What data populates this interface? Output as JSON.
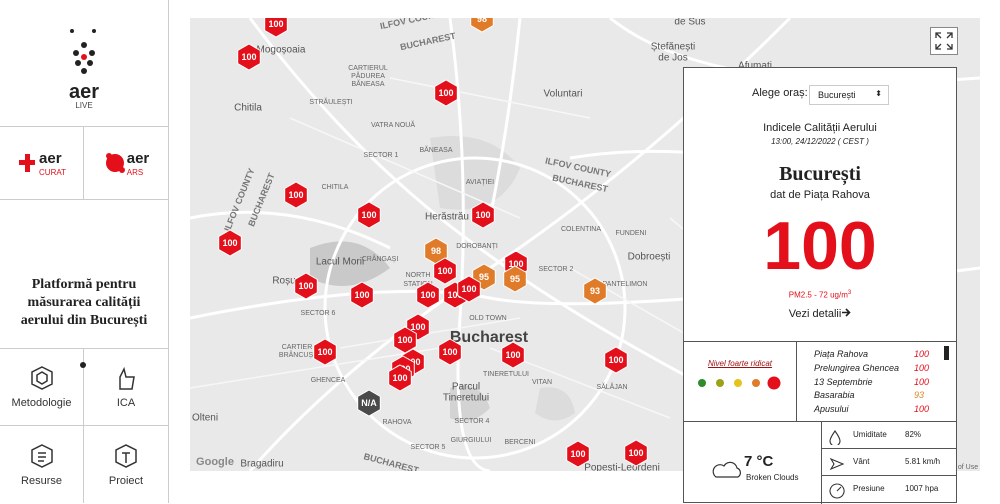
{
  "sidebar": {
    "logo": {
      "name": "aer",
      "sub": "LIVE"
    },
    "partners": [
      {
        "name": "aer",
        "sub": "CURAT"
      },
      {
        "name": "aer",
        "sub": "ARS"
      }
    ],
    "tagline": "Platformă pentru măsurarea calității aerului din București",
    "nav": [
      "Metodologie",
      "ICA",
      "Resurse",
      "Proiect"
    ]
  },
  "map": {
    "labels": [
      "Mogoșoaia",
      "ILFOV COUNTY",
      "BUCHAREST",
      "de Sus",
      "Ștefănești",
      "de Jos",
      "Afumați",
      "CARTIERUL",
      "PĂDUREA",
      "BĂNEASA",
      "STRĂULEȘTI",
      "Voluntari",
      "Chitila",
      "VATRA NOUĂ",
      "SECTOR 1",
      "BĂNEASA",
      "ILFOV COUNTY",
      "BUCHAREST",
      "CHITILA",
      "AVIAȚIEI",
      "ILFOV COUNTY",
      "BUCHAREST",
      "Herăstrău",
      "COLENTINA",
      "FUNDENI",
      "DOROBANȚI",
      "Lacul Morii",
      "CRÂNGAȘI",
      "Dobroești",
      "SECTOR 2",
      "Roșu",
      "PANTELIMON",
      "NORTH",
      "STATION",
      "SECTOR 6",
      "OLD TOWN",
      "Bucharest",
      "CARTIER",
      "BRÂNCUȘI",
      "GHENCEA",
      "TINERETULUI",
      "VITAN",
      "Parcul",
      "Tineretului",
      "SĂLĂJAN",
      "Olteni",
      "RAHOVA",
      "SECTOR 4",
      "GIURGIULUI",
      "SECTOR 5",
      "BERCENI",
      "Bragadiru",
      "BUCHAREST",
      "Popești-Leordeni",
      "Google",
      "of Use"
    ],
    "markers": [
      {
        "label": "100",
        "color": "#e3101b"
      },
      {
        "label": "100",
        "color": "#e3101b"
      },
      {
        "label": "100",
        "color": "#e3101b"
      },
      {
        "label": "98",
        "color": "#e07b2a"
      },
      {
        "label": "100",
        "color": "#e3101b"
      },
      {
        "label": "100",
        "color": "#e3101b"
      },
      {
        "label": "100",
        "color": "#e3101b"
      },
      {
        "label": "100",
        "color": "#e3101b"
      },
      {
        "label": "98",
        "color": "#e07b2a"
      },
      {
        "label": "100",
        "color": "#e3101b"
      },
      {
        "label": "100",
        "color": "#e3101b"
      },
      {
        "label": "95",
        "color": "#e07b2a"
      },
      {
        "label": "95",
        "color": "#e07b2a"
      },
      {
        "label": "100",
        "color": "#e3101b"
      },
      {
        "label": "100",
        "color": "#e3101b"
      },
      {
        "label": "100",
        "color": "#e3101b"
      },
      {
        "label": "100",
        "color": "#e3101b"
      },
      {
        "label": "100",
        "color": "#e3101b"
      },
      {
        "label": "93",
        "color": "#e07b2a"
      },
      {
        "label": "100",
        "color": "#e3101b"
      },
      {
        "label": "100",
        "color": "#e3101b"
      },
      {
        "label": "100",
        "color": "#e3101b"
      },
      {
        "label": "100",
        "color": "#e3101b"
      },
      {
        "label": "100",
        "color": "#e3101b"
      },
      {
        "label": "100",
        "color": "#e3101b"
      },
      {
        "label": "100",
        "color": "#e3101b"
      },
      {
        "label": "100",
        "color": "#e3101b"
      },
      {
        "label": "100",
        "color": "#e3101b"
      },
      {
        "label": "N/A",
        "color": "#4a4a4a"
      },
      {
        "label": "100",
        "color": "#e3101b"
      },
      {
        "label": "100",
        "color": "#e3101b"
      }
    ]
  },
  "panel": {
    "city_label": "Alege oraș:",
    "city_select": "București",
    "index_title": "Indicele Calității Aerului",
    "timestamp": "13:00, 24/12/2022 ( CEST )",
    "city": "București",
    "source": "dat de Piața Rahova",
    "aqi": "100",
    "pollutant": "PM2.5 - 72 ug/m",
    "pollutant_exp": "3",
    "details": "Vezi detalii",
    "level": "Nivel foarte ridicat",
    "level_colors": [
      "#2e8b2e",
      "#9aa21a",
      "#e6c21a",
      "#e07b2a",
      "#e3101b"
    ],
    "stations": [
      {
        "name": "Piața Rahova",
        "value": 100,
        "color": "#e3101b"
      },
      {
        "name": "Prelungirea Ghencea",
        "value": 100,
        "color": "#e3101b"
      },
      {
        "name": "13 Septembrie",
        "value": 100,
        "color": "#e3101b"
      },
      {
        "name": "Basarabia",
        "value": 93,
        "color": "#d88a2a"
      },
      {
        "name": "Apusului",
        "value": 100,
        "color": "#e3101b"
      }
    ],
    "weather": {
      "temperature": "7 °C",
      "description": "Broken Clouds",
      "rows": [
        {
          "label": "Umiditate",
          "value": "82%"
        },
        {
          "label": "Vânt",
          "value": "5.81 km/h"
        },
        {
          "label": "Presiune",
          "value": "1007 hpa"
        }
      ]
    }
  }
}
